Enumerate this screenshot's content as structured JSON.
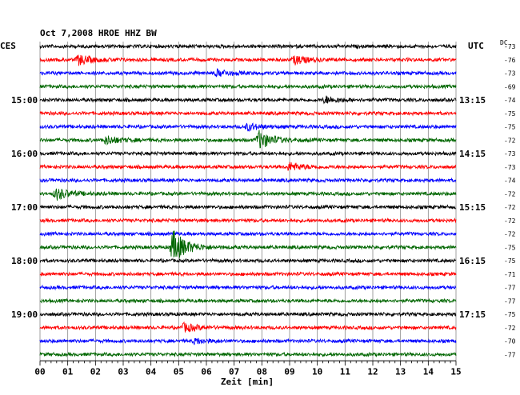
{
  "chart_data": {
    "type": "line",
    "title": "Oct 7,2008   HROE HHZ BW",
    "left_label": "CES",
    "right_label": "UTC",
    "right_header": "DC",
    "xlabel": "Zeit [min]",
    "xlim": [
      0,
      15
    ],
    "x_ticks": [
      "00",
      "01",
      "02",
      "03",
      "04",
      "05",
      "06",
      "07",
      "08",
      "09",
      "10",
      "11",
      "12",
      "13",
      "14",
      "15"
    ],
    "left_time_labels": [
      {
        "trace": 4,
        "text": "15:00"
      },
      {
        "trace": 8,
        "text": "16:00"
      },
      {
        "trace": 12,
        "text": "17:00"
      },
      {
        "trace": 16,
        "text": "18:00"
      },
      {
        "trace": 20,
        "text": "19:00"
      }
    ],
    "right_time_labels": [
      {
        "trace": 4,
        "text": "13:15"
      },
      {
        "trace": 8,
        "text": "14:15"
      },
      {
        "trace": 12,
        "text": "15:15"
      },
      {
        "trace": 16,
        "text": "16:15"
      },
      {
        "trace": 20,
        "text": "17:15"
      }
    ],
    "dc_offsets": [
      "-73",
      "-76",
      "-73",
      "-69",
      "-74",
      "-75",
      "-75",
      "-72",
      "-73",
      "-73",
      "-74",
      "-72",
      "-72",
      "-72",
      "-72",
      "-75",
      "-75",
      "-71",
      "-77",
      "-77",
      "-75",
      "-72",
      "-70",
      "-77"
    ],
    "trace_colors": [
      "#000000",
      "#ff0000",
      "#0000ff",
      "#006600"
    ],
    "grid": true,
    "events": [
      {
        "trace": 1,
        "minute": 1.4,
        "amplitude": 6
      },
      {
        "trace": 1,
        "minute": 9.2,
        "amplitude": 5
      },
      {
        "trace": 2,
        "minute": 6.4,
        "amplitude": 4
      },
      {
        "trace": 4,
        "minute": 10.3,
        "amplitude": 4
      },
      {
        "trace": 6,
        "minute": 7.5,
        "amplitude": 4
      },
      {
        "trace": 7,
        "minute": 7.9,
        "amplitude": 11
      },
      {
        "trace": 7,
        "minute": 2.4,
        "amplitude": 5
      },
      {
        "trace": 9,
        "minute": 9.0,
        "amplitude": 5
      },
      {
        "trace": 11,
        "minute": 0.6,
        "amplitude": 7
      },
      {
        "trace": 15,
        "minute": 4.8,
        "amplitude": 20
      },
      {
        "trace": 21,
        "minute": 5.2,
        "amplitude": 5
      },
      {
        "trace": 22,
        "minute": 5.6,
        "amplitude": 3
      }
    ]
  }
}
